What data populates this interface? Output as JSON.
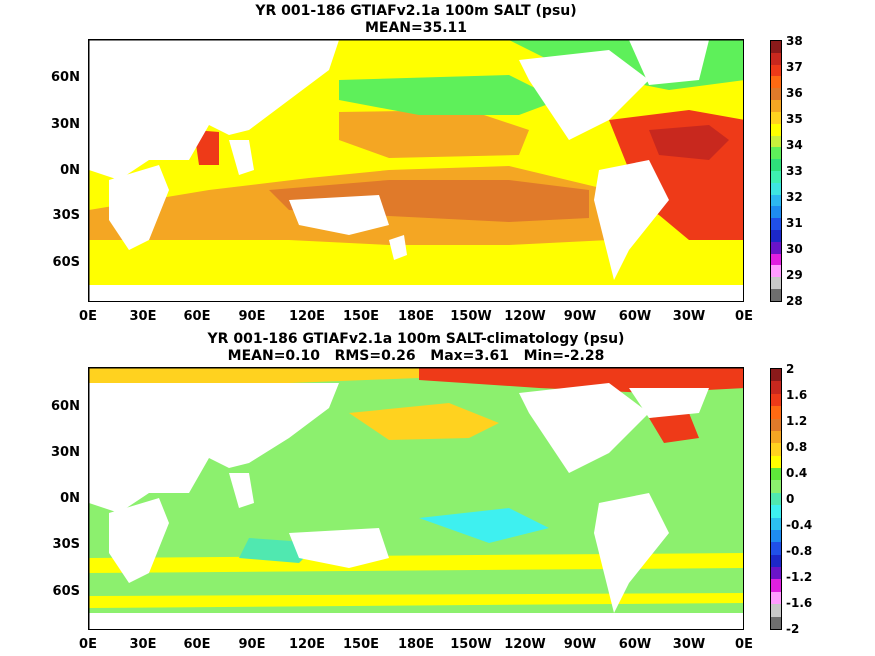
{
  "top": {
    "title": "YR 001-186 GTIAFv2.1a 100m SALT (psu)",
    "subtitle": "MEAN=35.11",
    "colorbar_labels": [
      "38",
      "37",
      "36",
      "35",
      "34",
      "33",
      "32",
      "31",
      "30",
      "29",
      "28"
    ],
    "colorbar_colors": [
      "#8a1a1a",
      "#c8281e",
      "#ee3a18",
      "#ff6a12",
      "#e07a2a",
      "#f4a623",
      "#ffd21f",
      "#ffff00",
      "#c8f03c",
      "#5ef05a",
      "#2ee07a",
      "#3ef0b0",
      "#3ee6e0",
      "#2cb8f0",
      "#1e8cf0",
      "#2050e8",
      "#1c28c8",
      "#6a14c8",
      "#e020e0",
      "#ff9cff",
      "#c8c8c8",
      "#6e6e6e"
    ]
  },
  "bottom": {
    "title": "YR 001-186 GTIAFv2.1a 100m SALT-climatology (psu)",
    "subtitle": "MEAN=0.10   RMS=0.26   Max=3.61   Min=-2.28",
    "colorbar_labels": [
      "2",
      "1.6",
      "1.2",
      "0.8",
      "0.4",
      "0",
      "-0.4",
      "-0.8",
      "-1.2",
      "-1.6",
      "-2"
    ],
    "colorbar_colors": [
      "#8a1a1a",
      "#c8281e",
      "#ee3a18",
      "#ff6a12",
      "#e07a2a",
      "#f4a623",
      "#ffd21f",
      "#ffff00",
      "#5ee83a",
      "#8cf06e",
      "#50e8b0",
      "#3ef0f0",
      "#2cc0f0",
      "#1e8cf0",
      "#2050e8",
      "#1c28c8",
      "#6a14c8",
      "#e020e0",
      "#ff9cff",
      "#c8c8c8",
      "#6e6e6e"
    ]
  },
  "lat_labels": [
    "60N",
    "30N",
    "0N",
    "30S",
    "60S"
  ],
  "lon_labels": [
    "0E",
    "30E",
    "60E",
    "90E",
    "120E",
    "150E",
    "180E",
    "150W",
    "120W",
    "90W",
    "60W",
    "30W",
    "0E"
  ]
}
